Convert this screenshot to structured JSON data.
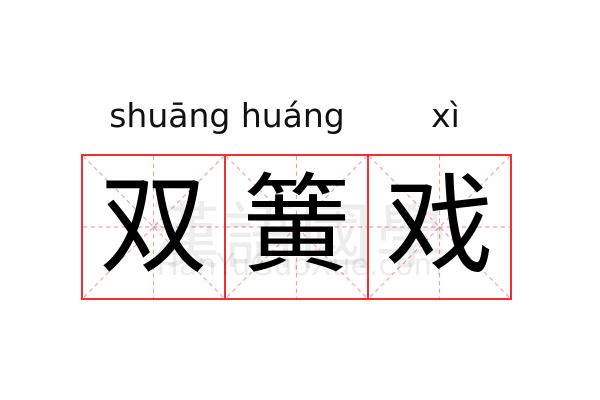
{
  "pinyin": {
    "first_two": "shuāng huáng",
    "third": "xì"
  },
  "characters": [
    "双",
    "簧",
    "戏"
  ],
  "watermark": {
    "chars": "漢語國學",
    "site": "HanYuGuoXue.com"
  },
  "colors": {
    "grid_border": "#f03030",
    "guide_lines": "#f5a0a0",
    "text": "#000000"
  }
}
